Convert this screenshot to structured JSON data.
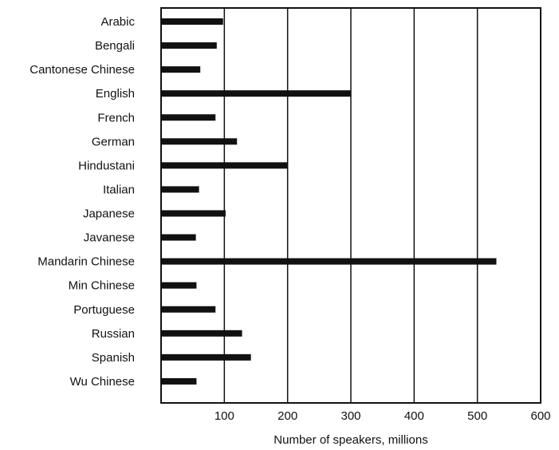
{
  "chart_data": {
    "type": "bar",
    "orientation": "horizontal",
    "categories": [
      "Arabic",
      "Bengali",
      "Cantonese Chinese",
      "English",
      "French",
      "German",
      "Hindustani",
      "Italian",
      "Japanese",
      "Javanese",
      "Mandarin Chinese",
      "Min Chinese",
      "Portuguese",
      "Russian",
      "Spanish",
      "Wu Chinese"
    ],
    "values": [
      98,
      88,
      62,
      300,
      86,
      120,
      200,
      60,
      102,
      55,
      530,
      56,
      86,
      128,
      142,
      56
    ],
    "xlabel": "Number of speakers, millions",
    "xticks": [
      "100",
      "200",
      "300",
      "400",
      "500",
      "600"
    ],
    "xlim": [
      0,
      600
    ],
    "grid": "vertical lines at each 100"
  }
}
